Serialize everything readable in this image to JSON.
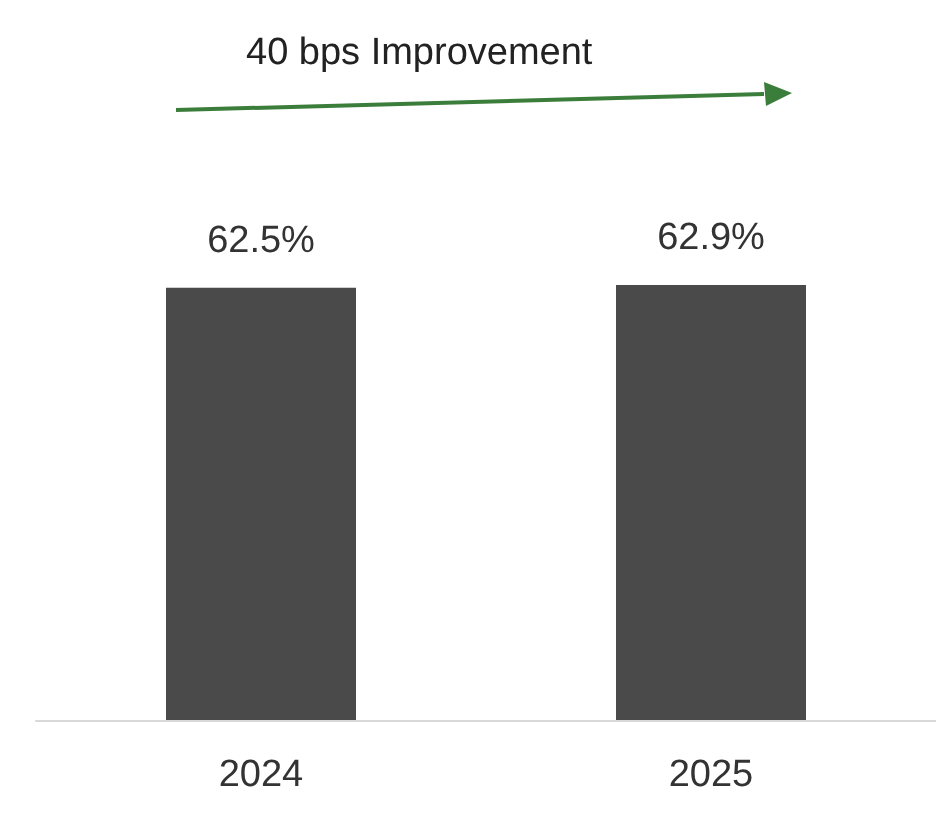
{
  "chart_data": {
    "type": "bar",
    "categories": [
      "2024",
      "2025"
    ],
    "values": [
      62.5,
      62.9
    ],
    "value_labels": [
      "62.5%",
      "62.9%"
    ],
    "color": "#4a4a4a",
    "annotations": [
      "40 bps Improvement"
    ]
  }
}
